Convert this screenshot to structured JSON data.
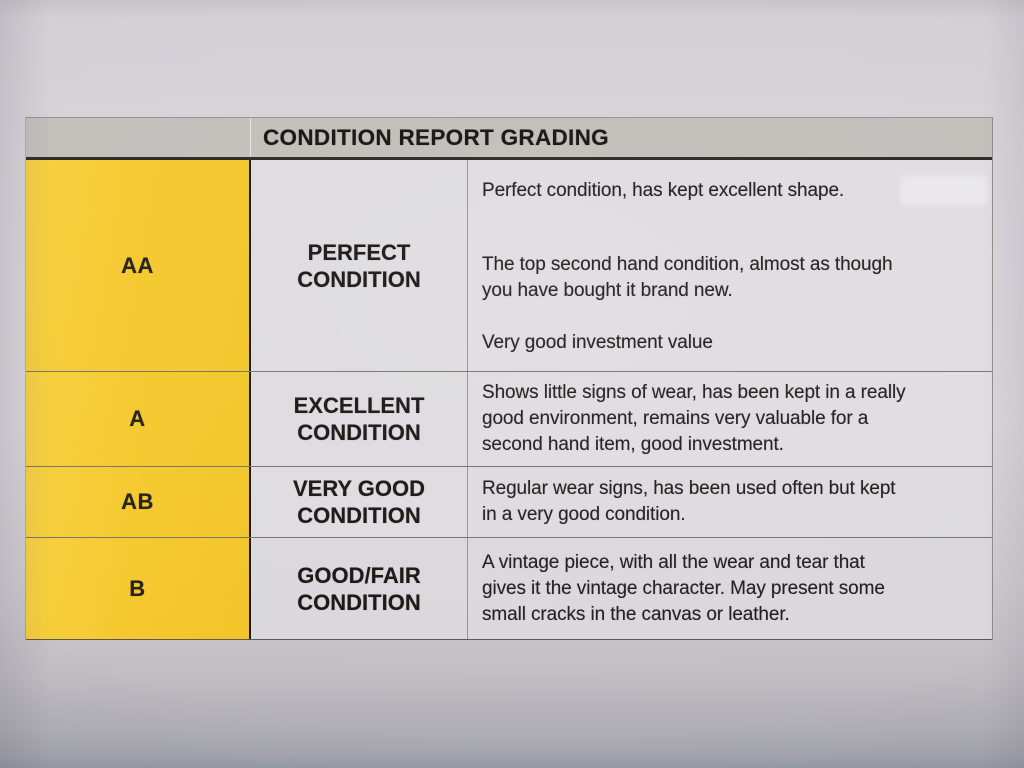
{
  "table": {
    "title": "CONDITION REPORT GRADING",
    "rows": [
      {
        "grade": "AA",
        "label_lines": [
          "PERFECT",
          "CONDITION"
        ],
        "paragraphs": [
          {
            "lines": [
              "Perfect condition, has kept excellent shape."
            ]
          },
          {
            "lines": [
              "The top second hand condition, almost as though",
              "you have bought it brand new."
            ]
          },
          {
            "lines": [
              "Very good investment value"
            ]
          }
        ]
      },
      {
        "grade": "A",
        "label_lines": [
          "EXCELLENT",
          "CONDITION"
        ],
        "paragraphs": [
          {
            "lines": [
              "Shows little signs of wear, has been kept in a really",
              "good environment, remains very valuable for a",
              "second hand item, good investment."
            ]
          }
        ]
      },
      {
        "grade": "AB",
        "label_lines": [
          "VERY GOOD",
          "CONDITION"
        ],
        "paragraphs": [
          {
            "lines": [
              "Regular wear signs, has been used often but kept",
              "in a very good condition."
            ]
          }
        ]
      },
      {
        "grade": "B",
        "label_lines": [
          "GOOD/FAIR",
          "CONDITION"
        ],
        "paragraphs": [
          {
            "lines": [
              "A vintage piece, with all the wear and tear that",
              "gives it the vintage character. May present some",
              "small cracks in the canvas or leather."
            ]
          }
        ]
      }
    ],
    "colors": {
      "grade_column_yellow": "#f5c92e",
      "header_gray": "#c1bfba",
      "cell_gray": "#dfdde1",
      "paper_gray": "#d7d5da",
      "text_black": "#1c1b18"
    }
  }
}
